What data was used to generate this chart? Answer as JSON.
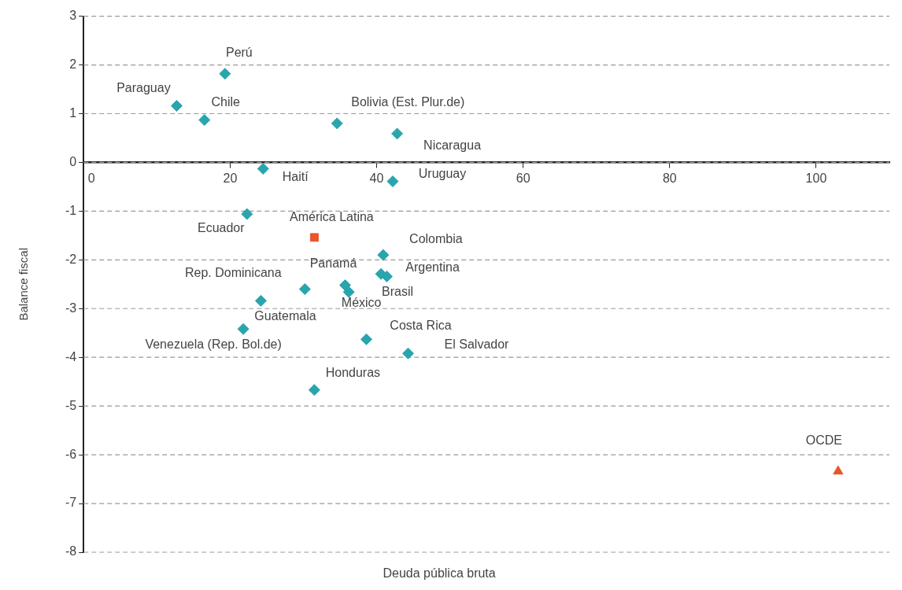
{
  "chart_data": {
    "type": "scatter",
    "xlabel": "Deuda pública bruta",
    "ylabel": "Balance fiscal",
    "xlim": [
      0,
      110
    ],
    "xticks": [
      0,
      20,
      40,
      60,
      80,
      100
    ],
    "ylim": [
      -8,
      3
    ],
    "yticks": [
      -8,
      -7,
      -6,
      -5,
      -4,
      -3,
      -2,
      -1,
      0,
      1,
      2,
      3
    ],
    "grid": "y",
    "legend": false,
    "line_style": "dashed",
    "series": [
      {
        "color": "#2aa5ae",
        "marker": "diamond",
        "x": [
          12.7,
          19.3,
          16.5,
          34.6,
          42.8,
          24.5,
          42.2,
          22.3,
          40.9,
          41.4,
          40.6,
          35.7,
          36.2,
          30.2,
          24.2,
          21.8,
          38.6,
          44.3,
          31.5
        ],
        "values": [
          1.16,
          1.82,
          0.87,
          0.8,
          0.59,
          -0.13,
          -0.39,
          -1.06,
          -1.9,
          -2.34,
          -2.29,
          -2.52,
          -2.66,
          -2.6,
          -2.84,
          -3.42,
          -3.63,
          -3.92,
          -4.67
        ]
      },
      {
        "name": "América Latina",
        "color": "#e8562a",
        "marker": "square",
        "x": [
          31.5
        ],
        "values": [
          -1.54
        ]
      },
      {
        "name": "OCDE",
        "color": "#e8562a",
        "marker": "triangle",
        "x": [
          103
        ],
        "values": [
          -6.34
        ]
      }
    ],
    "annotations": [
      {
        "text": "Paraguay",
        "x": 12.7,
        "y": 1.16
      },
      {
        "text": "Perú",
        "x": 19.3,
        "y": 1.82
      },
      {
        "text": "Chile",
        "x": 16.5,
        "y": 0.87
      },
      {
        "text": "Bolivia (Est. Plur.de)",
        "x": 34.6,
        "y": 0.8
      },
      {
        "text": "Nicaragua",
        "x": 42.8,
        "y": 0.59
      },
      {
        "text": "Haití",
        "x": 24.5,
        "y": -0.13
      },
      {
        "text": "Uruguay",
        "x": 42.2,
        "y": -0.39
      },
      {
        "text": "Ecuador",
        "x": 22.3,
        "y": -1.06
      },
      {
        "text": "Colombia",
        "x": 40.9,
        "y": -1.9
      },
      {
        "text": "Argentina",
        "x": 41.4,
        "y": -2.34
      },
      {
        "text": "Brasil",
        "x": 40.6,
        "y": -2.29
      },
      {
        "text": "Panamá",
        "x": 35.7,
        "y": -2.52
      },
      {
        "text": "México",
        "x": 36.2,
        "y": -2.66
      },
      {
        "text": "Rep. Dominicana",
        "x": 30.2,
        "y": -2.6
      },
      {
        "text": "Guatemala",
        "x": 24.2,
        "y": -2.84
      },
      {
        "text": "Venezuela (Rep. Bol.de)",
        "x": 21.8,
        "y": -3.42
      },
      {
        "text": "Costa Rica",
        "x": 38.6,
        "y": -3.63
      },
      {
        "text": "El Salvador",
        "x": 44.3,
        "y": -3.92
      },
      {
        "text": "Honduras",
        "x": 31.5,
        "y": -4.67
      }
    ]
  }
}
